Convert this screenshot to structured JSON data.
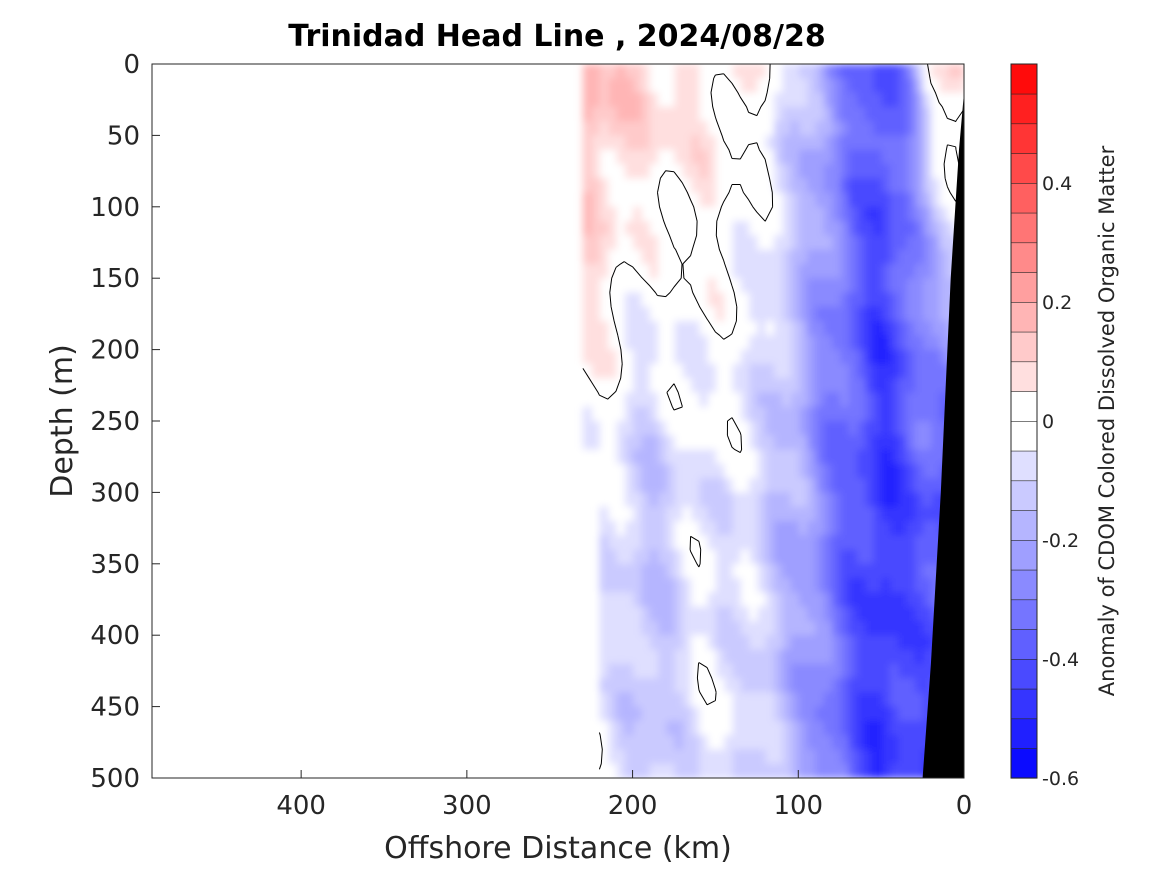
{
  "chart_data": {
    "type": "heatmap",
    "title": "Trinidad Head Line , 2024/08/28",
    "xlabel": "Offshore Distance (km)",
    "ylabel": "Depth (m)",
    "xlim": [
      490,
      0
    ],
    "ylim": [
      0,
      500
    ],
    "x_reversed": true,
    "y_reversed": true,
    "x_ticks": [
      400,
      300,
      200,
      100,
      0
    ],
    "y_ticks": [
      0,
      50,
      100,
      150,
      200,
      250,
      300,
      350,
      400,
      450,
      500
    ],
    "colorbar": {
      "label": "Anomaly of CDOM Colored Dissolved Organic Matter",
      "clim": [
        -0.6,
        0.6
      ],
      "step": 0.05,
      "ticks": [
        -0.6,
        -0.4,
        -0.2,
        0,
        0.2,
        0.4
      ],
      "colormap": "blue-white-red",
      "low_color": "#0000ff",
      "mid_color": "#ffffff",
      "high_color": "#ff0000"
    },
    "bathymetry_color": "#000000",
    "contour_levels": [
      0
    ],
    "data_extent": {
      "x_start_km": [
        230,
        230,
        230,
        220,
        220
      ],
      "x_start_depth_m": [
        0,
        250,
        260,
        300,
        500
      ]
    },
    "bottom_profile": {
      "x_km": [
        0,
        0,
        3,
        8,
        14,
        20,
        25,
        0
      ],
      "depth_m": [
        0,
        20,
        60,
        150,
        300,
        420,
        500,
        500
      ]
    },
    "column_anomaly_surface": [
      {
        "x_km": 230,
        "value": 0.18
      },
      {
        "x_km": 200,
        "value": 0.12
      },
      {
        "x_km": 150,
        "value": 0.05
      },
      {
        "x_km": 120,
        "value": 0.0
      },
      {
        "x_km": 100,
        "value": -0.12
      },
      {
        "x_km": 80,
        "value": -0.25
      },
      {
        "x_km": 50,
        "value": -0.42
      },
      {
        "x_km": 35,
        "value": -0.3
      },
      {
        "x_km": 20,
        "value": 0.0
      },
      {
        "x_km": 5,
        "value": 0.1
      }
    ],
    "column_anomaly_deep": [
      {
        "x_km": 220,
        "value": -0.05
      },
      {
        "x_km": 190,
        "value": -0.15
      },
      {
        "x_km": 160,
        "value": -0.05
      },
      {
        "x_km": 130,
        "value": -0.08
      },
      {
        "x_km": 100,
        "value": -0.2
      },
      {
        "x_km": 80,
        "value": -0.32
      },
      {
        "x_km": 50,
        "value": -0.48
      },
      {
        "x_km": 30,
        "value": -0.4
      }
    ]
  }
}
